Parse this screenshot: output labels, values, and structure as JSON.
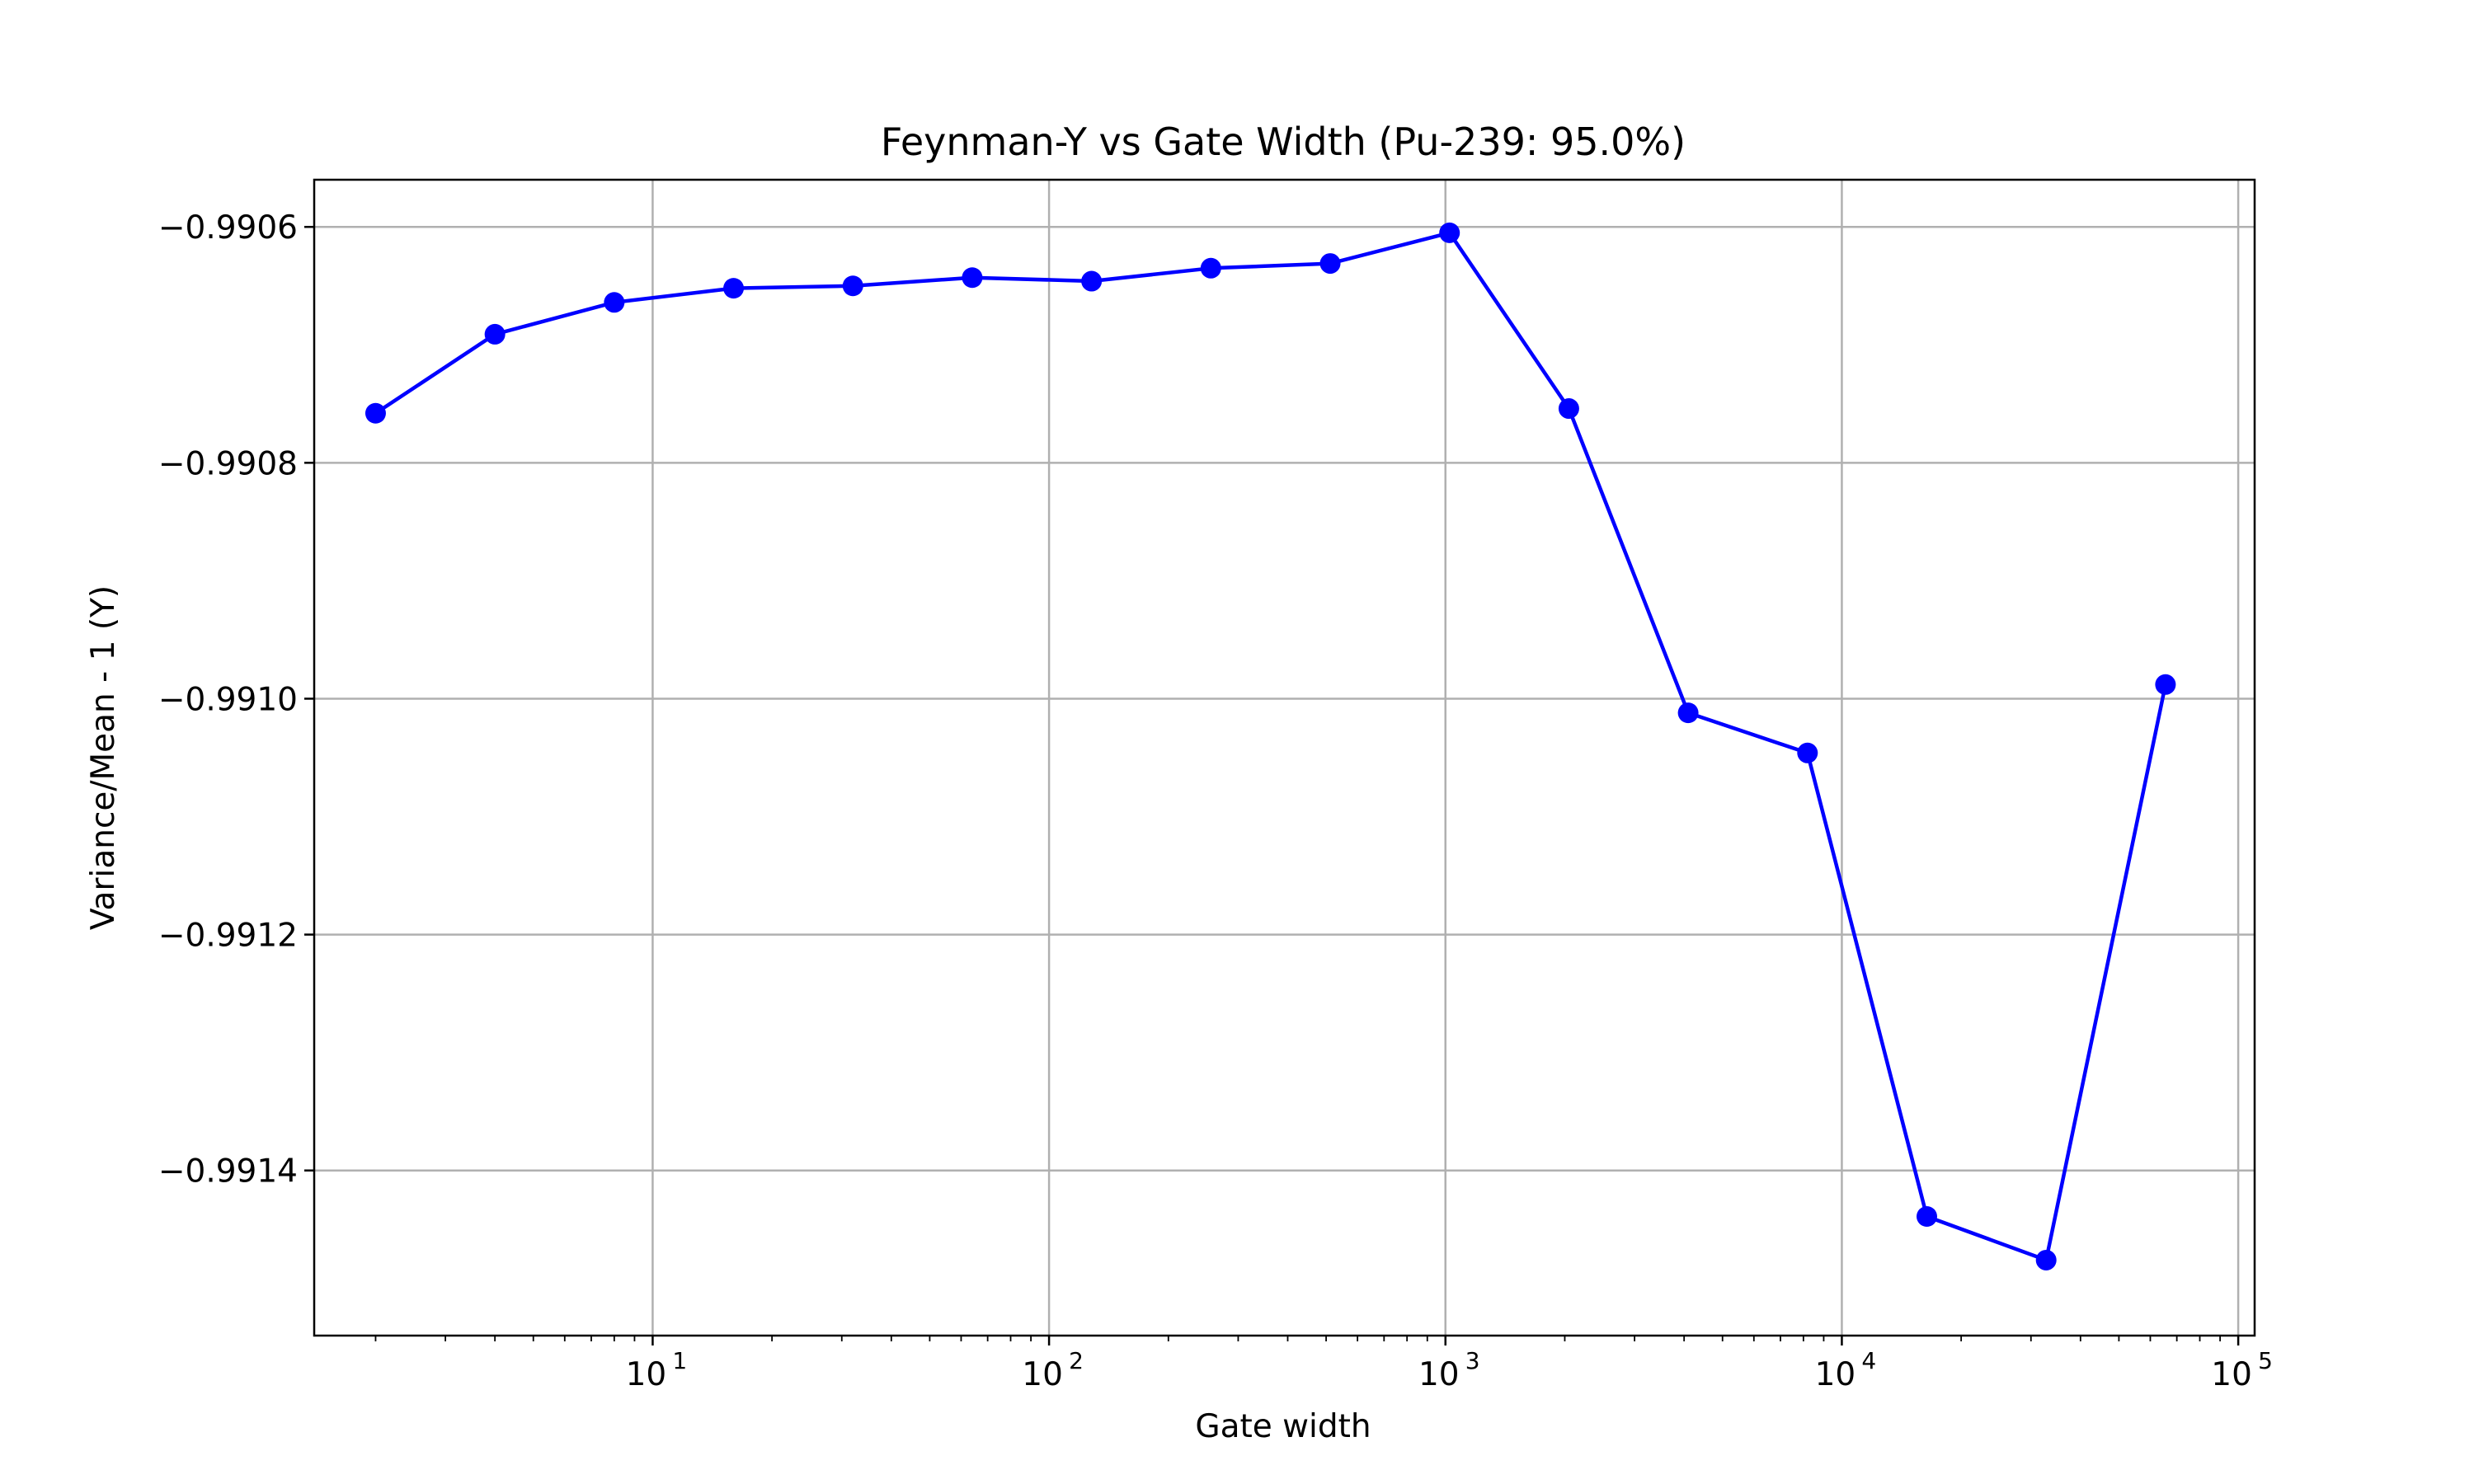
{
  "chart_data": {
    "type": "line",
    "title": "Feynman-Y vs Gate Width (Pu-239: 95.0%)",
    "xlabel": "Gate width",
    "ylabel": "Variance/Mean - 1 (Y)",
    "xscale": "log",
    "xlim": [
      1.4,
      110000
    ],
    "ylim": [
      -0.99154,
      -0.99056
    ],
    "grid": true,
    "legend": "none",
    "x_ticks": [
      {
        "value": 10,
        "label": "10",
        "exp": "1"
      },
      {
        "value": 100,
        "label": "10",
        "exp": "2"
      },
      {
        "value": 1000,
        "label": "10",
        "exp": "3"
      },
      {
        "value": 10000,
        "label": "10",
        "exp": "4"
      },
      {
        "value": 100000,
        "label": "10",
        "exp": "5"
      }
    ],
    "y_ticks": [
      {
        "value": -0.9906,
        "label": "−0.9906"
      },
      {
        "value": -0.9908,
        "label": "−0.9908"
      },
      {
        "value": -0.991,
        "label": "−0.9910"
      },
      {
        "value": -0.9912,
        "label": "−0.9912"
      },
      {
        "value": -0.9914,
        "label": "−0.9914"
      }
    ],
    "series": [
      {
        "color": "#0000ff",
        "marker": "circle",
        "x": [
          2,
          4,
          8,
          16,
          32,
          64,
          128,
          256,
          512,
          1024,
          2048,
          4096,
          8192,
          16384,
          32768,
          65536
        ],
        "y": [
          -0.990758,
          -0.990691,
          -0.990664,
          -0.990652,
          -0.99065,
          -0.990643,
          -0.990646,
          -0.990635,
          -0.990631,
          -0.990605,
          -0.990754,
          -0.991012,
          -0.991046,
          -0.991439,
          -0.991476,
          -0.990988
        ]
      }
    ]
  }
}
